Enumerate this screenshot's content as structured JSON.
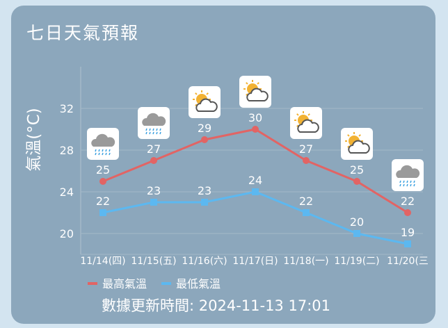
{
  "widget": {
    "title": "七日天氣預報",
    "updated_prefix": "數據更新時間: ",
    "updated_time": "2024-11-13 17:01"
  },
  "colors": {
    "card_bg": "#8ca7bc",
    "high": "#e26464",
    "low": "#5cb8f0",
    "grid": "#a3b8c8",
    "text": "#ffffff"
  },
  "chart_data": {
    "type": "line",
    "ylabel": "氣溫(°C)",
    "ylim": [
      18,
      36
    ],
    "yticks": [
      20,
      24,
      28,
      32
    ],
    "grid": true,
    "legend": "bottom-left",
    "categories": [
      "11/14(四)",
      "11/15(五)",
      "11/16(六)",
      "11/17(日)",
      "11/18(一)",
      "11/19(二)",
      "11/20(三"
    ],
    "icons": [
      "cloud-rain-icon",
      "cloud-rain-icon",
      "partly-cloudy-icon",
      "partly-cloudy-icon",
      "partly-cloudy-icon",
      "partly-cloudy-icon",
      "cloud-rain-icon"
    ],
    "series": [
      {
        "name": "最高氣溫",
        "values": [
          25,
          27,
          29,
          30,
          27,
          25,
          22
        ]
      },
      {
        "name": "最低氣溫",
        "values": [
          22,
          23,
          23,
          24,
          22,
          20,
          19
        ]
      }
    ]
  }
}
